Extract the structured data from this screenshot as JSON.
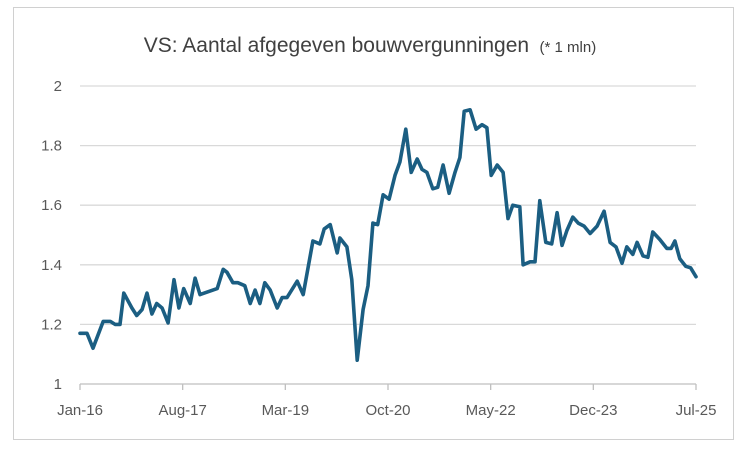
{
  "chart_data": {
    "type": "line",
    "title": "VS: Aantal afgegeven bouwvergunningen",
    "title_unit": "(* 1 mln)",
    "xlabel": "",
    "ylabel": "",
    "x_unit": "months since Jan-16",
    "xlim": [
      0,
      114
    ],
    "ylim": [
      1,
      2
    ],
    "grid": true,
    "legend": "none",
    "line_color": "#1b5e82",
    "x_ticks": [
      {
        "x": 0,
        "label": "Jan-16"
      },
      {
        "x": 19,
        "label": "Aug-17"
      },
      {
        "x": 38,
        "label": "Mar-19"
      },
      {
        "x": 57,
        "label": "Oct-20"
      },
      {
        "x": 76,
        "label": "May-22"
      },
      {
        "x": 95,
        "label": "Dec-23"
      },
      {
        "x": 114,
        "label": "Jul-25"
      }
    ],
    "y_ticks": [
      {
        "y": 1,
        "label": "1"
      },
      {
        "y": 1.2,
        "label": "1.2"
      },
      {
        "y": 1.4,
        "label": "1.4"
      },
      {
        "y": 1.6,
        "label": "1.6"
      },
      {
        "y": 1.8,
        "label": "1.8"
      },
      {
        "y": 2,
        "label": "2"
      }
    ],
    "series": [
      {
        "name": "Bouwvergunningen",
        "points": [
          [
            0,
            1.17
          ],
          [
            1.3,
            1.17
          ],
          [
            2.4,
            1.12
          ],
          [
            4.3,
            1.21
          ],
          [
            5.6,
            1.21
          ],
          [
            6.5,
            1.2
          ],
          [
            7.4,
            1.2
          ],
          [
            8.1,
            1.305
          ],
          [
            9.6,
            1.255
          ],
          [
            10.5,
            1.23
          ],
          [
            11.5,
            1.25
          ],
          [
            12.4,
            1.305
          ],
          [
            13.3,
            1.235
          ],
          [
            14.2,
            1.27
          ],
          [
            15.2,
            1.255
          ],
          [
            16.3,
            1.205
          ],
          [
            17.4,
            1.35
          ],
          [
            18.3,
            1.255
          ],
          [
            19.2,
            1.32
          ],
          [
            20.4,
            1.27
          ],
          [
            21.3,
            1.355
          ],
          [
            22.2,
            1.3
          ],
          [
            25.4,
            1.32
          ],
          [
            26.5,
            1.385
          ],
          [
            27.2,
            1.375
          ],
          [
            28.3,
            1.34
          ],
          [
            29.2,
            1.34
          ],
          [
            30.5,
            1.33
          ],
          [
            31.5,
            1.27
          ],
          [
            32.4,
            1.315
          ],
          [
            33.3,
            1.27
          ],
          [
            34.2,
            1.34
          ],
          [
            35.2,
            1.315
          ],
          [
            36.5,
            1.255
          ],
          [
            37.4,
            1.29
          ],
          [
            38.3,
            1.29
          ],
          [
            40.2,
            1.345
          ],
          [
            41.3,
            1.3
          ],
          [
            43.1,
            1.48
          ],
          [
            44.4,
            1.47
          ],
          [
            45.2,
            1.52
          ],
          [
            46.3,
            1.535
          ],
          [
            47.6,
            1.44
          ],
          [
            48.1,
            1.49
          ],
          [
            49.4,
            1.46
          ],
          [
            50.3,
            1.35
          ],
          [
            51.3,
            1.08
          ],
          [
            52.4,
            1.25
          ],
          [
            53.3,
            1.33
          ],
          [
            54.2,
            1.54
          ],
          [
            55.1,
            1.535
          ],
          [
            56.1,
            1.635
          ],
          [
            57.2,
            1.62
          ],
          [
            58.3,
            1.7
          ],
          [
            59.2,
            1.745
          ],
          [
            60.3,
            1.855
          ],
          [
            61.3,
            1.71
          ],
          [
            62.4,
            1.755
          ],
          [
            63.3,
            1.72
          ],
          [
            64.2,
            1.71
          ],
          [
            65.3,
            1.655
          ],
          [
            66.2,
            1.66
          ],
          [
            67.2,
            1.735
          ],
          [
            68.3,
            1.64
          ],
          [
            69.4,
            1.71
          ],
          [
            70.3,
            1.76
          ],
          [
            71.1,
            1.915
          ],
          [
            72.2,
            1.92
          ],
          [
            73.3,
            1.855
          ],
          [
            74.4,
            1.87
          ],
          [
            75.3,
            1.86
          ],
          [
            76.1,
            1.7
          ],
          [
            77.2,
            1.735
          ],
          [
            78.3,
            1.71
          ],
          [
            79.2,
            1.555
          ],
          [
            80.1,
            1.6
          ],
          [
            81.4,
            1.595
          ],
          [
            82.0,
            1.4
          ],
          [
            83.3,
            1.41
          ],
          [
            84.2,
            1.41
          ],
          [
            85.1,
            1.615
          ],
          [
            86.2,
            1.475
          ],
          [
            87.3,
            1.47
          ],
          [
            88.3,
            1.575
          ],
          [
            89.2,
            1.465
          ],
          [
            90.1,
            1.515
          ],
          [
            91.2,
            1.56
          ],
          [
            92.2,
            1.54
          ],
          [
            93.3,
            1.53
          ],
          [
            94.4,
            1.505
          ],
          [
            95.7,
            1.53
          ],
          [
            97.0,
            1.58
          ],
          [
            98.1,
            1.475
          ],
          [
            99.2,
            1.46
          ],
          [
            100.3,
            1.405
          ],
          [
            101.2,
            1.46
          ],
          [
            102.3,
            1.435
          ],
          [
            103.1,
            1.475
          ],
          [
            104.2,
            1.43
          ],
          [
            105.1,
            1.425
          ],
          [
            106.0,
            1.51
          ],
          [
            107.3,
            1.485
          ],
          [
            108.6,
            1.455
          ],
          [
            109.4,
            1.455
          ],
          [
            110.1,
            1.48
          ],
          [
            111.0,
            1.42
          ],
          [
            112.1,
            1.395
          ],
          [
            113.0,
            1.39
          ],
          [
            114,
            1.36
          ]
        ]
      }
    ]
  }
}
